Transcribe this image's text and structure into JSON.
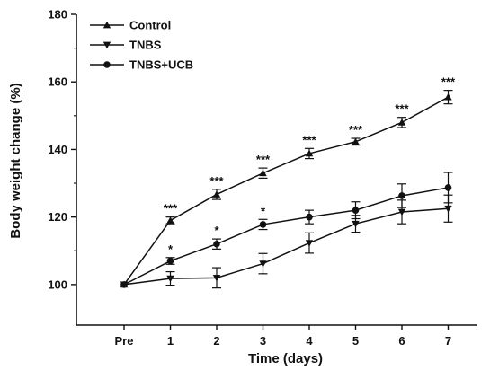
{
  "chart_data": {
    "type": "line",
    "categories": [
      "Pre",
      "1",
      "2",
      "3",
      "4",
      "5",
      "6",
      "7"
    ],
    "xlabel": "Time (days)",
    "ylabel": "Body weight change (%)",
    "ylim": [
      88,
      180
    ],
    "yticks": [
      100,
      120,
      140,
      160,
      180
    ],
    "grid": false,
    "legend_position": "top-left",
    "series": [
      {
        "name": "Control",
        "marker": "triangle-up",
        "values": [
          100,
          119,
          126.7,
          133,
          138.8,
          142.3,
          148,
          155.5
        ],
        "errors": [
          0,
          1.0,
          1.5,
          1.5,
          1.5,
          1.0,
          1.5,
          2.0
        ],
        "significance": [
          "",
          "***",
          "***",
          "***",
          "***",
          "***",
          "***",
          "***"
        ]
      },
      {
        "name": "TNBS",
        "marker": "triangle-down",
        "values": [
          100,
          101.8,
          102,
          106.2,
          112.3,
          118,
          121.5,
          122.5
        ],
        "errors": [
          0,
          2.0,
          3.0,
          3.0,
          3.0,
          2.5,
          3.5,
          4.0
        ],
        "significance": [
          "",
          "",
          "",
          "",
          "",
          "",
          "",
          ""
        ]
      },
      {
        "name": "TNBS+UCB",
        "marker": "circle",
        "values": [
          100,
          107,
          112,
          117.8,
          120,
          122,
          126.3,
          128.7
        ],
        "errors": [
          0,
          1.0,
          1.5,
          1.5,
          2.0,
          2.5,
          3.5,
          4.5
        ],
        "significance": [
          "",
          "*",
          "*",
          "*",
          "",
          "",
          "",
          ""
        ]
      }
    ]
  }
}
